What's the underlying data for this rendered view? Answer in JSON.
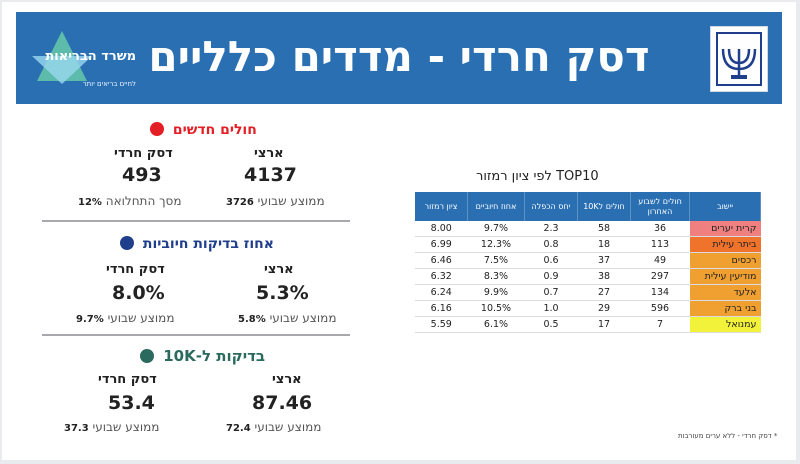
{
  "header": {
    "title": "דסק חרדי - מדדים כלליים",
    "ministry_logo": "משרד הבריאות",
    "ministry_sub": "לחיים בריאים יותר"
  },
  "new_patients": {
    "title": "חולים חדשים",
    "national_label": "ארצי",
    "national_value": "4137",
    "national_note_value": "3726",
    "national_note_label": "ממוצע שבועי",
    "haredi_label": "דסק חרדי",
    "haredi_value": "493",
    "haredi_note_value": "12%",
    "haredi_note_label": "מסך התחלואה"
  },
  "positive_tests": {
    "title": "אחוז בדיקות חיוביות",
    "national_label": "ארצי",
    "national_value": "5.3%",
    "national_note_value": "5.8%",
    "national_note_label": "ממוצע שבועי",
    "haredi_label": "דסק חרדי",
    "haredi_value": "8.0%",
    "haredi_note_value": "9.7%",
    "haredi_note_label": "ממוצע שבועי"
  },
  "tests_10k": {
    "title": "בדיקות ל-10K",
    "national_label": "ארצי",
    "national_value": "87.46",
    "national_note_value": "72.4",
    "national_note_label": "ממוצע שבועי",
    "haredi_label": "דסק חרדי",
    "haredi_value": "53.4",
    "haredi_note_value": "37.3",
    "haredi_note_label": "ממוצע שבועי"
  },
  "top10": {
    "title": "TOP10 לפי ציון רמזור",
    "headers": [
      "יישוב",
      "חולים לשבוע האחרון",
      "חולים ל10K",
      "יחס הכפלה",
      "אחוז חיוביים",
      "ציון רמזור"
    ],
    "rows": [
      {
        "city": "קרית יערים",
        "weekly": "36",
        "per10k": "58",
        "ratio": "2.3",
        "positive": "9.7%",
        "score": "8.00",
        "color": "#f08080"
      },
      {
        "city": "ביתר עילית",
        "weekly": "113",
        "per10k": "18",
        "ratio": "0.8",
        "positive": "12.3%",
        "score": "6.99",
        "color": "#f0732b"
      },
      {
        "city": "רכסים",
        "weekly": "49",
        "per10k": "37",
        "ratio": "0.6",
        "positive": "7.5%",
        "score": "6.46",
        "color": "#f0a030"
      },
      {
        "city": "מודיעין עילית",
        "weekly": "297",
        "per10k": "38",
        "ratio": "0.9",
        "positive": "8.3%",
        "score": "6.32",
        "color": "#f0a030"
      },
      {
        "city": "אלעד",
        "weekly": "134",
        "per10k": "27",
        "ratio": "0.7",
        "positive": "9.9%",
        "score": "6.24",
        "color": "#f0a030"
      },
      {
        "city": "בני ברק",
        "weekly": "596",
        "per10k": "29",
        "ratio": "1.0",
        "positive": "10.5%",
        "score": "6.16",
        "color": "#f0a030"
      },
      {
        "city": "עמנואל",
        "weekly": "7",
        "per10k": "17",
        "ratio": "0.5",
        "positive": "6.1%",
        "score": "5.59",
        "color": "#f2f23a"
      }
    ],
    "footnote": "* דסק חרדי - ללא ערים מעורבות"
  }
}
